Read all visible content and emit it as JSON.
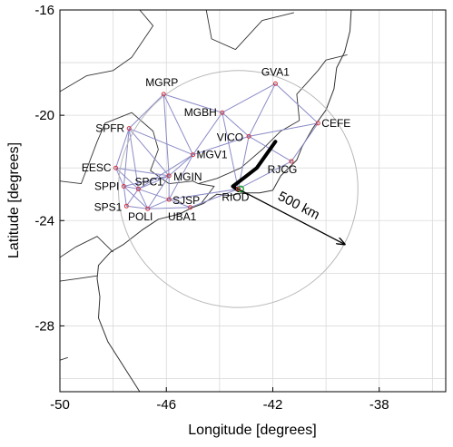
{
  "chart_data": {
    "type": "scatter",
    "title": "",
    "xlabel": "Longitude [degrees]",
    "ylabel": "Latitude [degrees]",
    "xlim": [
      -50,
      -35.5
    ],
    "ylim": [
      -30.5,
      -16
    ],
    "xticks": [
      -50,
      -46,
      -42,
      -38
    ],
    "yticks": [
      -16,
      -20,
      -24,
      -28
    ],
    "xtick_labels": [
      "-50",
      "-46",
      "-42",
      "-38"
    ],
    "ytick_labels": [
      "-16",
      "-20",
      "-24",
      "-28"
    ],
    "grid": true,
    "stations": [
      {
        "name": "MGRP",
        "lon": -46.1,
        "lat": -19.2
      },
      {
        "name": "GVA1",
        "lon": -41.9,
        "lat": -18.8
      },
      {
        "name": "MGBH",
        "lon": -43.9,
        "lat": -19.9
      },
      {
        "name": "CEFE",
        "lon": -40.3,
        "lat": -20.3
      },
      {
        "name": "SPFR",
        "lon": -47.4,
        "lat": -20.5
      },
      {
        "name": "VICO",
        "lon": -42.9,
        "lat": -20.8
      },
      {
        "name": "MGV1",
        "lon": -45.0,
        "lat": -21.5
      },
      {
        "name": "RJCG",
        "lon": -41.3,
        "lat": -21.75
      },
      {
        "name": "EESC",
        "lon": -47.9,
        "lat": -22.0
      },
      {
        "name": "MGIN",
        "lon": -45.9,
        "lat": -22.3
      },
      {
        "name": "SPC1",
        "lon": -47.05,
        "lat": -22.8
      },
      {
        "name": "SPPI",
        "lon": -47.6,
        "lat": -22.7
      },
      {
        "name": "SJSP",
        "lon": -45.9,
        "lat": -23.2
      },
      {
        "name": "SPS1",
        "lon": -47.5,
        "lat": -23.45
      },
      {
        "name": "POLI",
        "lon": -46.7,
        "lat": -23.55
      },
      {
        "name": "UBA1",
        "lon": -45.1,
        "lat": -23.5
      },
      {
        "name": "RIOD",
        "lon": -43.3,
        "lat": -22.8
      }
    ],
    "links": [
      [
        "MGRP",
        "SPFR"
      ],
      [
        "MGRP",
        "MGBH"
      ],
      [
        "MGRP",
        "MGV1"
      ],
      [
        "MGRP",
        "MGIN"
      ],
      [
        "GVA1",
        "MGBH"
      ],
      [
        "GVA1",
        "VICO"
      ],
      [
        "GVA1",
        "CEFE"
      ],
      [
        "MGBH",
        "VICO"
      ],
      [
        "MGBH",
        "MGV1"
      ],
      [
        "MGBH",
        "RIOD"
      ],
      [
        "CEFE",
        "VICO"
      ],
      [
        "CEFE",
        "RJCG"
      ],
      [
        "VICO",
        "RIOD"
      ],
      [
        "VICO",
        "RJCG"
      ],
      [
        "VICO",
        "MGV1"
      ],
      [
        "SPFR",
        "EESC"
      ],
      [
        "SPFR",
        "MGV1"
      ],
      [
        "SPFR",
        "MGIN"
      ],
      [
        "SPFR",
        "SPC1"
      ],
      [
        "SPFR",
        "SPPI"
      ],
      [
        "EESC",
        "SPPI"
      ],
      [
        "EESC",
        "SPC1"
      ],
      [
        "EESC",
        "MGIN"
      ],
      [
        "MGV1",
        "MGIN"
      ],
      [
        "MGV1",
        "SJSP"
      ],
      [
        "MGV1",
        "SPC1"
      ],
      [
        "MGIN",
        "SPC1"
      ],
      [
        "MGIN",
        "SJSP"
      ],
      [
        "MGIN",
        "POLI"
      ],
      [
        "MGIN",
        "SPPI"
      ],
      [
        "SPC1",
        "SPPI"
      ],
      [
        "SPC1",
        "POLI"
      ],
      [
        "SPC1",
        "SPS1"
      ],
      [
        "SPC1",
        "SJSP"
      ],
      [
        "SPPI",
        "SPS1"
      ],
      [
        "SPPI",
        "POLI"
      ],
      [
        "SPS1",
        "POLI"
      ],
      [
        "POLI",
        "SJSP"
      ],
      [
        "POLI",
        "UBA1"
      ],
      [
        "SJSP",
        "UBA1"
      ],
      [
        "UBA1",
        "RIOD"
      ],
      [
        "SJSP",
        "RIOD"
      ],
      [
        "RIOD",
        "RJCG"
      ]
    ],
    "circle": {
      "center_lon": -43.3,
      "center_lat": -22.8,
      "radius_deg": 4.5
    },
    "track": [
      {
        "lon": -41.9,
        "lat": -21.0
      },
      {
        "lon": -42.6,
        "lat": -22.0
      },
      {
        "lon": -43.05,
        "lat": -22.35
      },
      {
        "lon": -43.5,
        "lat": -22.7
      },
      {
        "lon": -43.3,
        "lat": -22.85
      }
    ],
    "origin_marker": {
      "lon": -43.2,
      "lat": -22.8
    },
    "radius_arrow": {
      "from_lon": -43.3,
      "from_lat": -22.8,
      "to_lon": -39.3,
      "to_lat": -24.9
    },
    "radius_label": "500 km",
    "colors": {
      "network": "#8b8bc8",
      "station": "#d0343c",
      "circle": "#b8b8b8",
      "coast": "#333333",
      "track": "#000000",
      "origin": "#1db33a"
    }
  },
  "coastline": [
    [
      -47.0,
      -30.5
    ],
    [
      -48.2,
      -28.6
    ],
    [
      -48.55,
      -27.7
    ],
    [
      -48.5,
      -26.9
    ],
    [
      -48.6,
      -26.2
    ],
    [
      -48.55,
      -25.7
    ],
    [
      -48.1,
      -25.2
    ],
    [
      -47.6,
      -24.9
    ],
    [
      -46.9,
      -24.35
    ],
    [
      -46.3,
      -23.95
    ],
    [
      -45.5,
      -23.75
    ],
    [
      -45.05,
      -23.52
    ],
    [
      -44.6,
      -23.35
    ],
    [
      -44.1,
      -23.0
    ],
    [
      -43.6,
      -23.05
    ],
    [
      -43.15,
      -22.95
    ],
    [
      -42.5,
      -22.95
    ],
    [
      -42.0,
      -22.85
    ],
    [
      -41.7,
      -22.3
    ],
    [
      -41.1,
      -21.7
    ],
    [
      -40.9,
      -21.2
    ],
    [
      -40.5,
      -20.5
    ],
    [
      -40.0,
      -19.8
    ],
    [
      -39.7,
      -19.0
    ],
    [
      -39.6,
      -18.2
    ],
    [
      -39.3,
      -17.6
    ],
    [
      -39.1,
      -16.8
    ],
    [
      -39.05,
      -16.0
    ]
  ],
  "borders": [
    [
      [
        -47.0,
        -16.0
      ],
      [
        -46.5,
        -16.6
      ],
      [
        -46.9,
        -17.2
      ],
      [
        -47.3,
        -17.8
      ],
      [
        -48.0,
        -18.3
      ],
      [
        -49.0,
        -18.5
      ],
      [
        -50.0,
        -19.1
      ]
    ],
    [
      [
        -50.0,
        -22.5
      ],
      [
        -49.2,
        -22.6
      ],
      [
        -48.6,
        -21.0
      ],
      [
        -48.3,
        -20.3
      ],
      [
        -47.3,
        -19.9
      ],
      [
        -46.5,
        -20.6
      ],
      [
        -46.3,
        -21.3
      ],
      [
        -46.6,
        -22.1
      ],
      [
        -45.9,
        -22.6
      ],
      [
        -45.0,
        -22.5
      ],
      [
        -44.8,
        -22.6
      ],
      [
        -44.1,
        -22.4
      ],
      [
        -43.2,
        -22.0
      ],
      [
        -42.4,
        -21.3
      ],
      [
        -41.7,
        -20.6
      ],
      [
        -41.0,
        -20.2
      ]
    ],
    [
      [
        -44.7,
        -23.36
      ],
      [
        -44.2,
        -22.7
      ],
      [
        -44.8,
        -22.6
      ]
    ],
    [
      [
        -41.0,
        -20.2
      ],
      [
        -41.1,
        -19.2
      ],
      [
        -40.3,
        -18.3
      ],
      [
        -40.0,
        -17.9
      ],
      [
        -39.2,
        -17.7
      ]
    ],
    [
      [
        -50.0,
        -25.4
      ],
      [
        -49.4,
        -25.0
      ],
      [
        -48.6,
        -24.6
      ],
      [
        -48.0,
        -25.2
      ]
    ],
    [
      [
        -50.0,
        -26.3
      ],
      [
        -49.3,
        -26.2
      ],
      [
        -48.6,
        -26.1
      ]
    ],
    [
      [
        -50.0,
        -29.3
      ],
      [
        -49.7,
        -29.2
      ]
    ],
    [
      [
        -44.5,
        -16.0
      ],
      [
        -44.3,
        -17.1
      ],
      [
        -43.4,
        -17.5
      ],
      [
        -42.4,
        -16.4
      ],
      [
        -41.2,
        -16.1
      ]
    ]
  ]
}
